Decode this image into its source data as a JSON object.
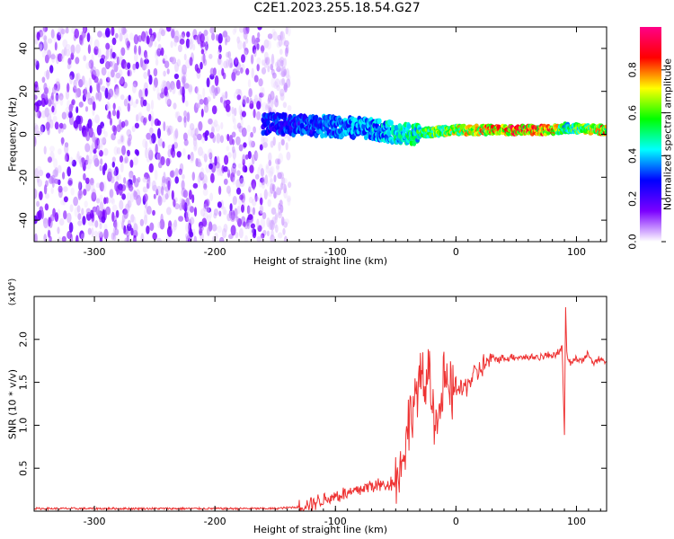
{
  "title": "C2E1.2023.255.18.54.G27",
  "chart_data": [
    {
      "type": "heatmap",
      "xlabel": "Height of straight line (km)",
      "ylabel": "Frequency (Hz)",
      "xlim": [
        -350,
        125
      ],
      "ylim": [
        -50,
        50
      ],
      "xticks": [
        -300,
        -200,
        -100,
        0,
        100
      ],
      "yticks": [
        -40,
        -20,
        0,
        20,
        40
      ],
      "grid": false,
      "colorbar": {
        "label": "Normalized spectral amplitude",
        "range": [
          0.0,
          1.0
        ],
        "ticks": [
          "0.0",
          "0.2",
          "0.4",
          "0.6",
          "0.8"
        ],
        "colors": [
          "#ffffff",
          "#7b00ff",
          "#0000ff",
          "#00ffff",
          "#00ff00",
          "#ffff00",
          "#ff0000",
          "#ff0088"
        ]
      },
      "noise_region_x": [
        -350,
        -150
      ],
      "signal_track": {
        "x": [
          -160,
          -120,
          -80,
          -40,
          -20,
          0,
          40,
          80,
          90,
          125
        ],
        "center_hz": [
          5,
          4,
          3,
          0,
          1,
          2,
          2,
          2,
          3,
          2
        ],
        "peak_amplitude": [
          0.35,
          0.4,
          0.45,
          0.55,
          0.7,
          0.8,
          0.95,
          0.95,
          0.6,
          0.9
        ]
      }
    },
    {
      "type": "line",
      "xlabel": "Height of straight line (km)",
      "ylabel": "SNR (10 * v/v)",
      "y_multiplier": "(x10⁴)",
      "xlim": [
        -350,
        125
      ],
      "ylim": [
        0,
        2.5
      ],
      "xticks": [
        -300,
        -200,
        -100,
        0,
        100
      ],
      "yticks": [
        0.5,
        1.0,
        1.5,
        2.0
      ],
      "grid": false,
      "color": "#ee3333",
      "series": [
        {
          "x": [
            -350,
            -300,
            -250,
            -200,
            -150,
            -130,
            -120,
            -110,
            -100,
            -90,
            -80,
            -70,
            -60,
            -50,
            -45,
            -40,
            -35,
            -30,
            -25,
            -22,
            -20,
            -15,
            -10,
            -5,
            0,
            5,
            10,
            15,
            20,
            25,
            30,
            40,
            50,
            60,
            70,
            80,
            85,
            88,
            90,
            91,
            92,
            95,
            100,
            105,
            110,
            115,
            120,
            125
          ],
          "y": [
            0.03,
            0.03,
            0.03,
            0.03,
            0.03,
            0.05,
            0.1,
            0.13,
            0.18,
            0.2,
            0.25,
            0.3,
            0.3,
            0.35,
            0.55,
            0.95,
            1.3,
            1.5,
            1.4,
            1.8,
            1.3,
            1.0,
            1.5,
            1.35,
            1.45,
            1.4,
            1.5,
            1.58,
            1.65,
            1.72,
            1.77,
            1.78,
            1.8,
            1.79,
            1.8,
            1.82,
            1.85,
            1.9,
            0.9,
            2.4,
            1.8,
            1.72,
            1.78,
            1.76,
            1.82,
            1.74,
            1.76,
            1.73
          ]
        }
      ]
    }
  ]
}
